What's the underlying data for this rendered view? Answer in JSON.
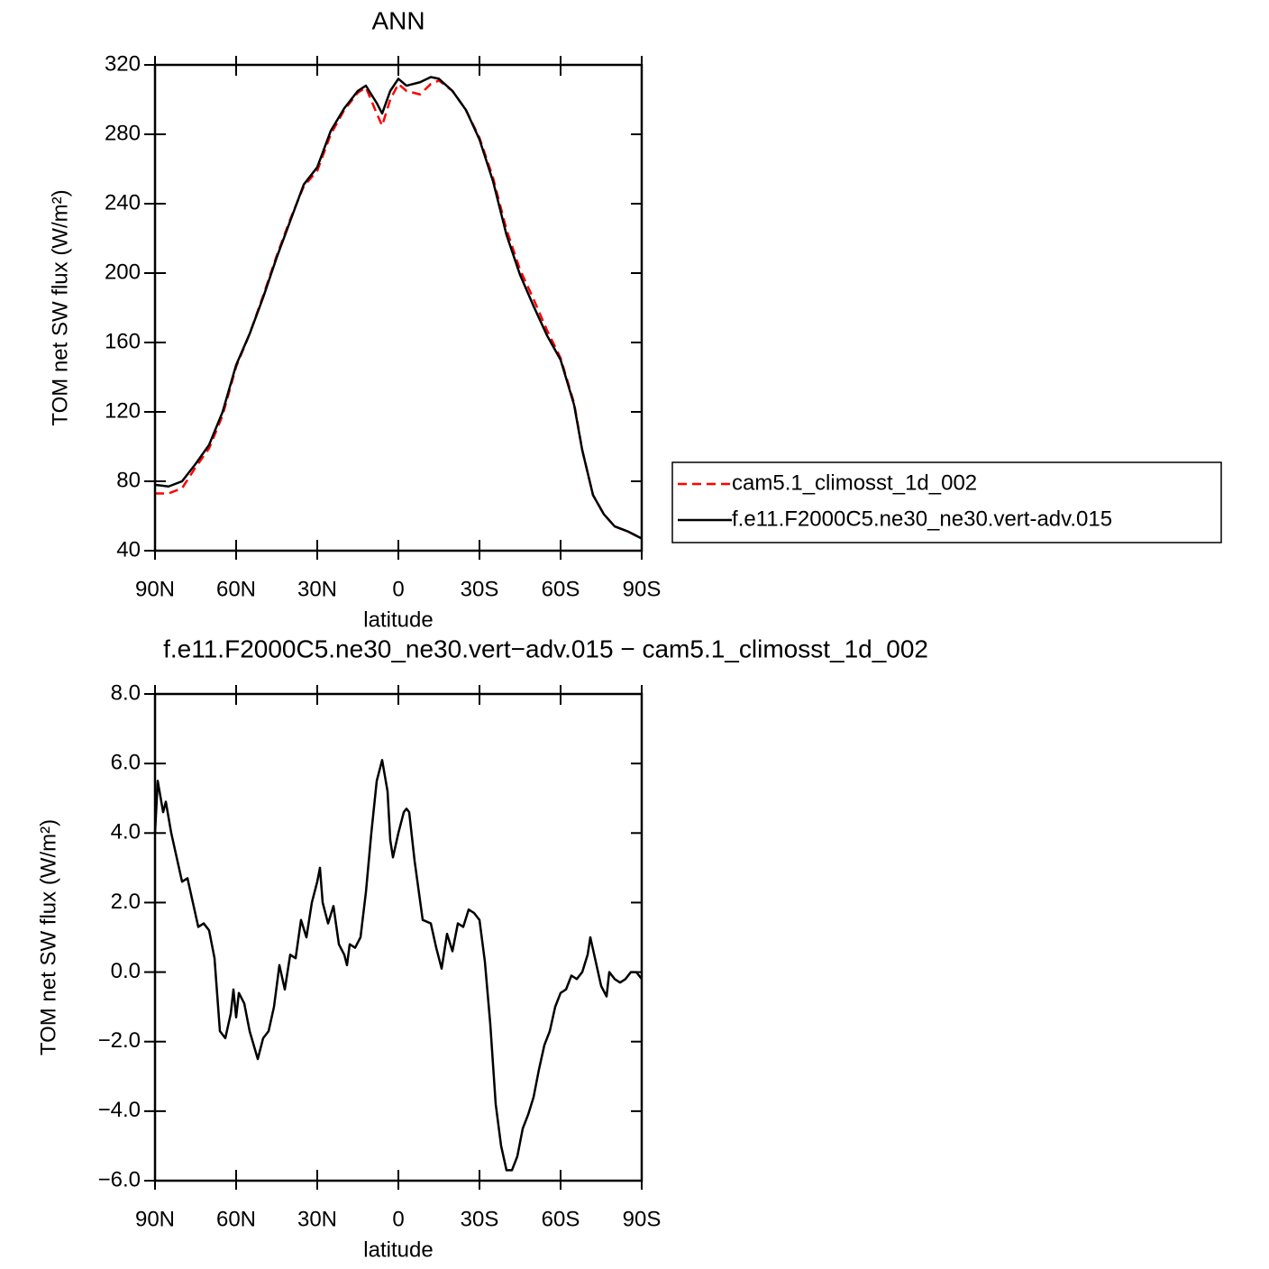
{
  "chart_data": [
    {
      "type": "line",
      "title": "ANN",
      "xlabel": "latitude",
      "ylabel": "TOM net SW flux (W/m²)",
      "x": [
        90,
        85,
        80,
        75,
        70,
        65,
        60,
        55,
        50,
        45,
        40,
        35,
        30,
        25,
        20,
        15,
        12,
        8,
        6,
        3,
        0,
        -3,
        -8,
        -12,
        -15,
        -20,
        -25,
        -30,
        -35,
        -40,
        -45,
        -50,
        -55,
        -60,
        -65,
        -68,
        -72,
        -76,
        -80,
        -85,
        -90
      ],
      "series": [
        {
          "name": "cam5.1_climosst_1d_002",
          "color": "#ff0000",
          "dash": true,
          "values": [
            73,
            73,
            76,
            88,
            99,
            118,
            146,
            165,
            187,
            210,
            231,
            250,
            259,
            280,
            294,
            304,
            307,
            292,
            285,
            300,
            309,
            305,
            303,
            309,
            311,
            305,
            294,
            278,
            255,
            225,
            202,
            185,
            167,
            151,
            125,
            98,
            72,
            61,
            54,
            51,
            47
          ]
        },
        {
          "name": "f.e11.F2000C5.ne30_ne30.vert-adv.015",
          "color": "#000000",
          "dash": false,
          "values": [
            78,
            77,
            80,
            90,
            101,
            120,
            147,
            165,
            186,
            209,
            230,
            251,
            261,
            282,
            295,
            305,
            308,
            298,
            292,
            305,
            312,
            308,
            310,
            313,
            312,
            305,
            294,
            277,
            253,
            222,
            199,
            181,
            164,
            150,
            124,
            98,
            72,
            61,
            54,
            51,
            47
          ]
        }
      ],
      "xlim": [
        90,
        -90
      ],
      "xticks": [
        {
          "value": 90,
          "label": "90N"
        },
        {
          "value": 60,
          "label": "60N"
        },
        {
          "value": 30,
          "label": "30N"
        },
        0,
        {
          "value": -30,
          "label": "30S"
        },
        {
          "value": -60,
          "label": "60S"
        },
        {
          "value": -90,
          "label": "90S"
        }
      ],
      "ylim": [
        40,
        320
      ],
      "yticks": [
        40,
        80,
        120,
        160,
        200,
        240,
        280,
        320
      ],
      "legend": "right"
    },
    {
      "type": "line",
      "title": "f.e11.F2000C5.ne30_ne30.vert−adv.015 − cam5.1_climosst_1d_002",
      "xlabel": "latitude",
      "ylabel": "TOM net SW flux (W/m²)",
      "x": [
        90,
        89,
        87,
        86,
        84,
        82,
        80,
        78,
        76,
        74,
        72,
        70,
        68,
        66,
        64,
        62,
        61,
        60,
        59,
        57,
        55,
        52,
        50,
        48,
        46,
        44,
        42,
        40,
        38,
        36,
        34,
        32,
        30,
        29,
        28,
        26,
        24,
        22,
        20,
        19,
        18,
        16,
        14,
        12,
        10,
        8,
        6,
        4,
        3,
        2,
        0,
        -2,
        -3,
        -4,
        -6,
        -9,
        -12,
        -14,
        -16,
        -18,
        -20,
        -22,
        -24,
        -26,
        -28,
        -30,
        -32,
        -34,
        -36,
        -38,
        -40,
        -42,
        -44,
        -46,
        -48,
        -50,
        -52,
        -54,
        -56,
        -58,
        -60,
        -62,
        -64,
        -66,
        -68,
        -70,
        -71,
        -73,
        -75,
        -77,
        -78,
        -80,
        -82,
        -84,
        -86,
        -88,
        -90
      ],
      "series": [
        {
          "color": "#000000",
          "dash": false,
          "values": [
            4.0,
            5.5,
            4.6,
            4.9,
            4.0,
            3.3,
            2.6,
            2.7,
            2.0,
            1.3,
            1.4,
            1.2,
            0.4,
            -1.7,
            -1.9,
            -1.2,
            -0.5,
            -1.3,
            -0.6,
            -0.9,
            -1.7,
            -2.5,
            -1.9,
            -1.7,
            -1.0,
            0.2,
            -0.5,
            0.5,
            0.4,
            1.5,
            1.0,
            2.0,
            2.6,
            3.0,
            2.0,
            1.4,
            1.9,
            0.8,
            0.5,
            0.2,
            0.8,
            0.7,
            1.0,
            2.3,
            4.0,
            5.5,
            6.1,
            5.2,
            3.8,
            3.3,
            4.0,
            4.6,
            4.7,
            4.6,
            3.2,
            1.5,
            1.4,
            0.7,
            0.1,
            1.1,
            0.6,
            1.4,
            1.3,
            1.8,
            1.7,
            1.5,
            0.3,
            -1.5,
            -3.8,
            -5.0,
            -5.7,
            -5.7,
            -5.3,
            -4.5,
            -4.1,
            -3.6,
            -2.8,
            -2.1,
            -1.7,
            -1.0,
            -0.6,
            -0.5,
            -0.1,
            -0.2,
            0.0,
            0.5,
            1.0,
            0.3,
            -0.4,
            -0.7,
            0.0,
            -0.2,
            -0.3,
            -0.2,
            0.0,
            0.0,
            -0.2
          ]
        }
      ],
      "xlim": [
        90,
        -90
      ],
      "xticks": [
        {
          "value": 90,
          "label": "90N"
        },
        {
          "value": 60,
          "label": "60N"
        },
        {
          "value": 30,
          "label": "30N"
        },
        0,
        {
          "value": -30,
          "label": "30S"
        },
        {
          "value": -60,
          "label": "60S"
        },
        {
          "value": -90,
          "label": "90S"
        }
      ],
      "ylim": [
        -6,
        8
      ],
      "yticks": [
        {
          "value": -6,
          "label": "−6.0"
        },
        {
          "value": -4,
          "label": "−4.0"
        },
        {
          "value": -2,
          "label": "−2.0"
        },
        {
          "value": 0,
          "label": "0.0"
        },
        {
          "value": 2,
          "label": "2.0"
        },
        {
          "value": 4,
          "label": "4.0"
        },
        {
          "value": 6,
          "label": "6.0"
        },
        {
          "value": 8,
          "label": "8.0"
        }
      ]
    }
  ]
}
